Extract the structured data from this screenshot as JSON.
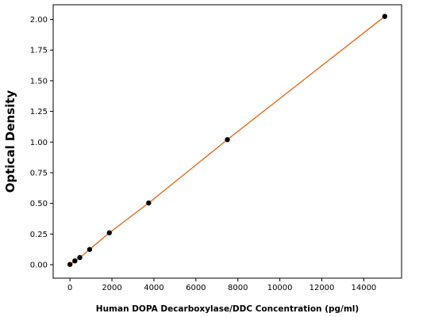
{
  "chart_data": {
    "type": "scatter",
    "xlabel": "Human DOPA Decarboxylase/DDC Concentration (pg/ml)",
    "ylabel": "Optical Density",
    "xlim": [
      -800,
      15800
    ],
    "ylim": [
      -0.11,
      2.12
    ],
    "x_ticks": [
      0,
      2000,
      4000,
      6000,
      8000,
      10000,
      12000,
      14000
    ],
    "y_ticks": [
      0.0,
      0.25,
      0.5,
      0.75,
      1.0,
      1.25,
      1.5,
      1.75,
      2.0
    ],
    "x_tick_labels": [
      "0",
      "2000",
      "4000",
      "6000",
      "8000",
      "10000",
      "12000",
      "14000"
    ],
    "y_tick_labels": [
      "0.00",
      "0.25",
      "0.50",
      "0.75",
      "1.00",
      "1.25",
      "1.50",
      "1.75",
      "2.00"
    ],
    "grid": false,
    "series": [
      {
        "x": [
          0,
          234,
          469,
          938,
          1875,
          3750,
          7500,
          15000
        ],
        "y": [
          0.002,
          0.031,
          0.058,
          0.124,
          0.26,
          0.503,
          1.02,
          2.025
        ],
        "marker_color": "#000000",
        "fit_line": true,
        "line_color": "#e8620c"
      }
    ]
  }
}
